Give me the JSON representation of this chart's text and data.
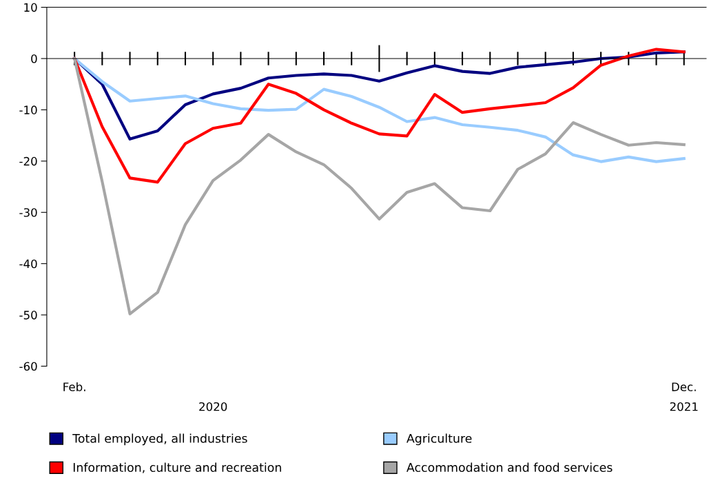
{
  "chart_data": {
    "type": "line",
    "categories": [
      "Feb.",
      null,
      null,
      null,
      null,
      null,
      null,
      null,
      null,
      null,
      null,
      null,
      null,
      null,
      null,
      null,
      null,
      null,
      null,
      null,
      null,
      null,
      "Dec."
    ],
    "series": [
      {
        "name": "Total employed, all industries",
        "color": "#000080",
        "values": [
          0,
          -5.0,
          -15.7,
          -14.1,
          -9.0,
          -6.9,
          -5.8,
          -3.8,
          -3.3,
          -3.0,
          -3.3,
          -4.4,
          -2.8,
          -1.4,
          -2.5,
          -2.9,
          -1.7,
          -1.2,
          -0.7,
          0,
          0.3,
          1.1,
          1.3
        ]
      },
      {
        "name": "Agriculture",
        "color": "#99ccff",
        "values": [
          0,
          -4.5,
          -8.3,
          -7.8,
          -7.3,
          -8.8,
          -9.8,
          -10.1,
          -9.9,
          -6.0,
          -7.4,
          -9.5,
          -12.3,
          -11.5,
          -12.9,
          -13.4,
          -14.0,
          -15.3,
          -18.8,
          -20.1,
          -19.2,
          -20.1,
          -19.5
        ]
      },
      {
        "name": "Information, culture and recreation",
        "color": "#ff0000",
        "values": [
          0,
          -13.3,
          -23.3,
          -24.1,
          -16.6,
          -13.6,
          -12.6,
          -5.0,
          -6.8,
          -10.0,
          -12.6,
          -14.7,
          -15.1,
          -7.0,
          -10.5,
          -9.8,
          -9.2,
          -8.6,
          -5.7,
          -1.3,
          0.5,
          1.8,
          1.3
        ]
      },
      {
        "name": "Accommodation and food services",
        "color": "#a6a6a6",
        "values": [
          0,
          -24.0,
          -49.8,
          -45.6,
          -32.4,
          -23.8,
          -19.8,
          -14.8,
          -18.2,
          -20.7,
          -25.3,
          -31.3,
          -26.1,
          -24.4,
          -29.1,
          -29.7,
          -21.6,
          -18.6,
          -12.5,
          -14.8,
          -16.9,
          -16.4,
          -16.8
        ]
      }
    ],
    "ylim": [
      -60,
      10
    ],
    "yticks": [
      -60,
      -50,
      -40,
      -30,
      -20,
      -10,
      0,
      10
    ],
    "annotations": [
      "2020",
      "2021"
    ],
    "legend": "bottom",
    "marker": "none",
    "line_style": "solid"
  }
}
